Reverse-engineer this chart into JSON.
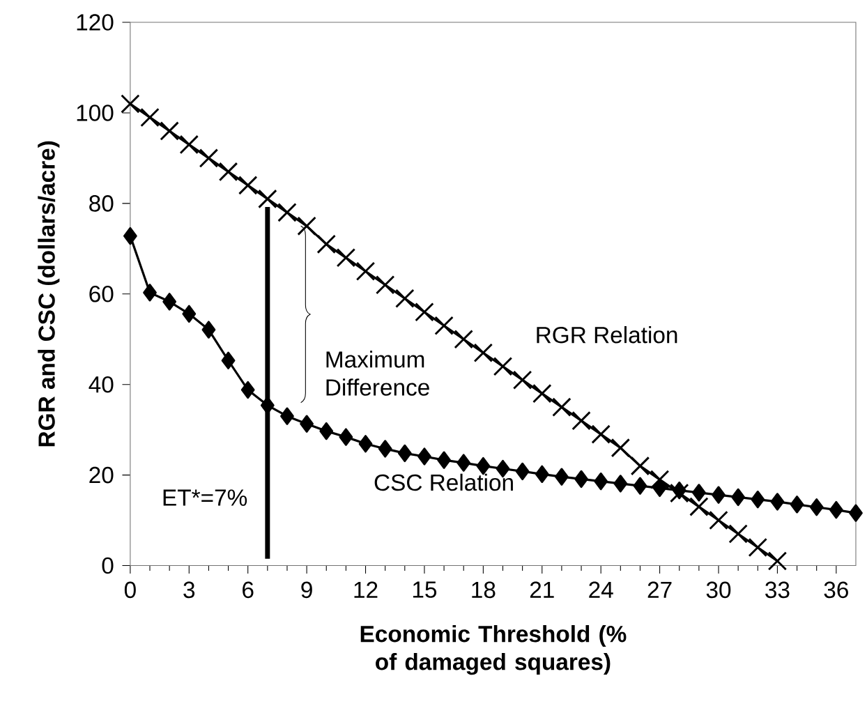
{
  "chart_data": {
    "type": "line",
    "xlabel": "Economic Threshold (% of damaged squares)",
    "ylabel": "RGR and CSC (dollars/acre)",
    "x": [
      0,
      1,
      2,
      3,
      4,
      5,
      6,
      7,
      8,
      9,
      10,
      11,
      12,
      13,
      14,
      15,
      16,
      17,
      18,
      19,
      20,
      21,
      22,
      23,
      24,
      25,
      26,
      27,
      28,
      29,
      30,
      31,
      32,
      33,
      34,
      35,
      36,
      37
    ],
    "series": [
      {
        "name": "RGR Relation",
        "color": "#000000",
        "marker": "cross",
        "x": [
          0,
          1,
          2,
          3,
          4,
          5,
          6,
          7,
          8,
          9,
          10,
          11,
          12,
          13,
          14,
          15,
          16,
          17,
          18,
          19,
          20,
          21,
          22,
          23,
          24,
          25,
          26,
          27,
          28,
          29,
          30,
          31,
          32,
          33
        ],
        "values": [
          102,
          99,
          96,
          93,
          90,
          87,
          84,
          81,
          78,
          75,
          71,
          68,
          65,
          62,
          59,
          56,
          53,
          50,
          47,
          44,
          41,
          38,
          35,
          32,
          29,
          26,
          22,
          19,
          16,
          13,
          10,
          7,
          4,
          1
        ]
      },
      {
        "name": "CSC Relation",
        "color": "#000000",
        "marker": "diamond",
        "values": [
          72.8,
          60.3,
          58.3,
          55.6,
          52.1,
          45.3,
          38.8,
          35.4,
          33.0,
          31.3,
          29.7,
          28.4,
          26.9,
          25.8,
          24.8,
          24.1,
          23.3,
          22.7,
          22.0,
          21.4,
          20.8,
          20.2,
          19.6,
          19.1,
          18.6,
          18.1,
          17.6,
          17.1,
          16.6,
          16.1,
          15.6,
          15.1,
          14.6,
          14.1,
          13.5,
          12.9,
          12.3,
          11.6
        ]
      }
    ],
    "xlim": [
      0,
      37
    ],
    "xticks": [
      0,
      3,
      6,
      9,
      12,
      15,
      18,
      21,
      24,
      27,
      30,
      33,
      36
    ],
    "ylim": [
      0,
      120
    ],
    "yticks": [
      0,
      20,
      40,
      60,
      80,
      100,
      120
    ],
    "ref_lines": [
      {
        "axis": "x",
        "value": 7,
        "label": "ET*=7%",
        "color": "#000000"
      }
    ],
    "annotations": [
      {
        "text": "Maximum Difference",
        "x": 9,
        "y": 75
      }
    ],
    "grid": false
  }
}
